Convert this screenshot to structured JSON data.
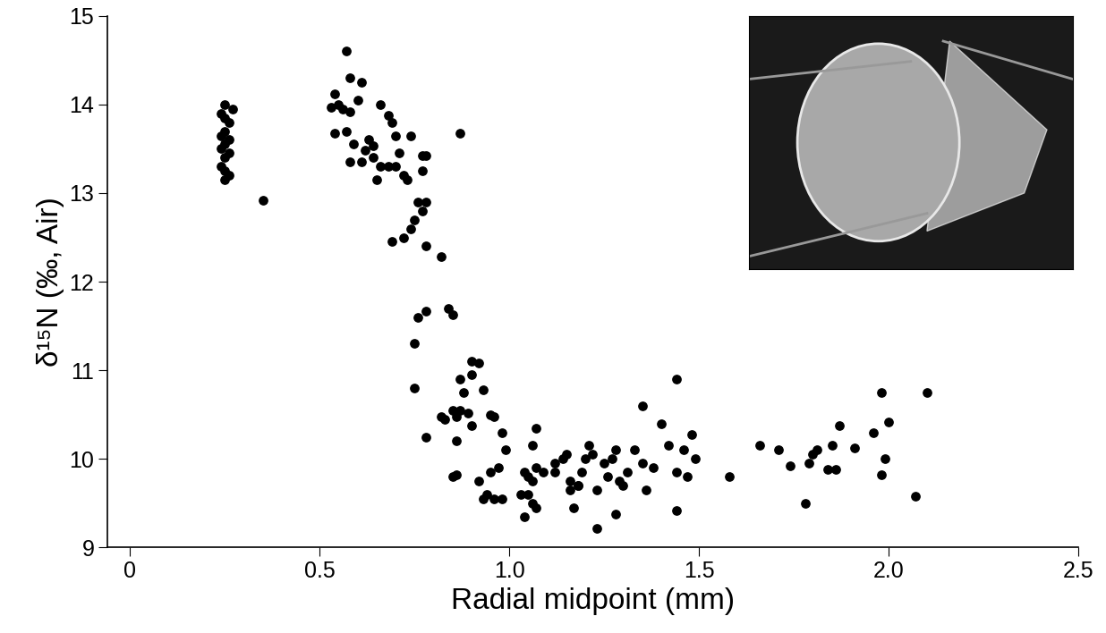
{
  "chart_data": {
    "type": "scatter",
    "xlabel": "Radial midpoint (mm)",
    "ylabel": "δ¹⁵N (‰, Air)",
    "color": "#000000",
    "marker": "o",
    "xlim": [
      -0.06,
      2.5
    ],
    "ylim": [
      9,
      15
    ],
    "xticks": [
      0,
      0.5,
      {
        "value": 1,
        "label": "1.0"
      },
      1.5,
      {
        "value": 2,
        "label": "2.0"
      },
      2.5
    ],
    "yticks": [
      9,
      10,
      11,
      12,
      13,
      14,
      15
    ],
    "grid": false,
    "x": [
      0.25,
      0.24,
      0.25,
      0.26,
      0.25,
      0.24,
      0.26,
      0.25,
      0.24,
      0.26,
      0.25,
      0.24,
      0.25,
      0.26,
      0.25,
      0.27,
      0.35,
      0.57,
      0.58,
      0.61,
      0.54,
      0.55,
      0.56,
      0.53,
      0.58,
      0.66,
      0.6,
      0.68,
      0.69,
      0.54,
      0.57,
      0.59,
      0.63,
      0.7,
      0.62,
      0.64,
      0.74,
      0.58,
      0.61,
      0.64,
      0.66,
      0.68,
      0.71,
      0.7,
      0.72,
      0.73,
      0.65,
      0.77,
      0.78,
      0.77,
      0.87,
      0.76,
      0.78,
      0.77,
      0.75,
      0.74,
      0.72,
      0.69,
      0.78,
      0.82,
      0.84,
      0.85,
      0.78,
      0.76,
      0.75,
      0.75,
      0.78,
      0.9,
      0.92,
      0.9,
      0.93,
      0.87,
      0.88,
      0.82,
      0.85,
      0.87,
      0.89,
      0.83,
      0.86,
      0.9,
      0.95,
      0.96,
      0.98,
      0.86,
      0.85,
      0.86,
      0.92,
      0.95,
      0.97,
      0.99,
      0.93,
      0.94,
      0.96,
      0.98,
      1.04,
      1.05,
      1.03,
      1.06,
      1.07,
      1.04,
      1.05,
      1.06,
      1.07,
      1.06,
      1.07,
      1.09,
      1.12,
      1.14,
      1.15,
      1.16,
      1.16,
      1.17,
      1.18,
      1.19,
      1.2,
      1.21,
      1.22,
      1.23,
      1.23,
      1.25,
      1.26,
      1.27,
      1.28,
      1.29,
      1.3,
      1.31,
      1.33,
      1.35,
      1.35,
      1.36,
      1.38,
      1.4,
      1.42,
      1.44,
      1.44,
      1.44,
      1.46,
      1.47,
      1.48,
      1.49,
      1.28,
      1.12,
      1.18,
      1.58,
      1.66,
      1.71,
      1.74,
      1.78,
      1.79,
      1.8,
      1.81,
      1.84,
      1.86,
      1.85,
      1.87,
      1.91,
      1.96,
      1.98,
      1.98,
      1.99,
      2.0,
      2.07,
      2.1
    ],
    "values": [
      14.0,
      13.9,
      13.85,
      13.8,
      13.7,
      13.65,
      13.6,
      13.55,
      13.5,
      13.45,
      13.4,
      13.3,
      13.25,
      13.2,
      13.15,
      13.95,
      12.92,
      14.6,
      14.3,
      14.25,
      14.12,
      14.0,
      13.95,
      13.97,
      13.92,
      14.0,
      14.05,
      13.88,
      13.8,
      13.68,
      13.7,
      13.55,
      13.6,
      13.65,
      13.48,
      13.53,
      13.65,
      13.35,
      13.35,
      13.4,
      13.3,
      13.3,
      13.45,
      13.3,
      13.2,
      13.15,
      13.15,
      13.42,
      13.42,
      13.25,
      13.68,
      12.9,
      12.9,
      12.8,
      12.7,
      12.6,
      12.5,
      12.45,
      12.4,
      12.28,
      11.7,
      11.63,
      11.67,
      11.6,
      11.3,
      10.8,
      10.25,
      11.1,
      11.08,
      10.95,
      10.78,
      10.9,
      10.75,
      10.48,
      10.55,
      10.55,
      10.52,
      10.45,
      10.48,
      10.38,
      10.5,
      10.48,
      10.3,
      10.2,
      9.8,
      9.82,
      9.75,
      9.85,
      9.9,
      10.1,
      9.55,
      9.6,
      9.55,
      9.55,
      9.35,
      9.6,
      9.6,
      9.5,
      9.45,
      9.85,
      9.8,
      9.75,
      9.9,
      10.15,
      10.35,
      9.85,
      9.85,
      10.0,
      10.05,
      9.75,
      9.65,
      9.45,
      9.7,
      9.85,
      10.0,
      10.15,
      10.05,
      9.65,
      9.22,
      9.95,
      9.8,
      10.0,
      10.1,
      9.75,
      9.7,
      9.85,
      10.1,
      10.6,
      9.95,
      9.65,
      9.9,
      10.4,
      10.15,
      10.9,
      9.85,
      9.42,
      10.1,
      9.8,
      10.28,
      10.0,
      9.38,
      9.95,
      9.7,
      9.8,
      10.15,
      10.1,
      9.92,
      9.5,
      9.95,
      10.05,
      10.1,
      9.88,
      9.88,
      10.15,
      10.38,
      10.12,
      10.3,
      10.75,
      9.82,
      10.0,
      10.42,
      9.58,
      10.75
    ]
  }
}
